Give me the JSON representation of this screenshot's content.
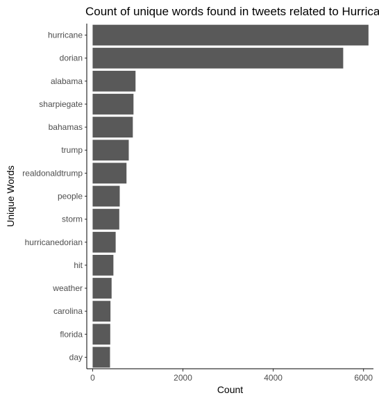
{
  "chart_data": {
    "type": "bar",
    "orientation": "horizontal",
    "title": "Count of unique words found in tweets related to Hurricane Dorian",
    "xlabel": "Count",
    "ylabel": "Unique Words",
    "categories": [
      "hurricane",
      "dorian",
      "alabama",
      "sharpiegate",
      "bahamas",
      "trump",
      "realdonaldtrump",
      "people",
      "storm",
      "hurricanedorian",
      "hit",
      "weather",
      "carolina",
      "florida",
      "day"
    ],
    "values": [
      6110,
      5550,
      950,
      905,
      890,
      800,
      750,
      600,
      590,
      510,
      460,
      420,
      395,
      390,
      385
    ],
    "xlim": [
      -130,
      6220
    ],
    "xticks": [
      0,
      2000,
      4000,
      6000
    ],
    "bar_color": "#595959",
    "grid": false,
    "legend": "none"
  }
}
